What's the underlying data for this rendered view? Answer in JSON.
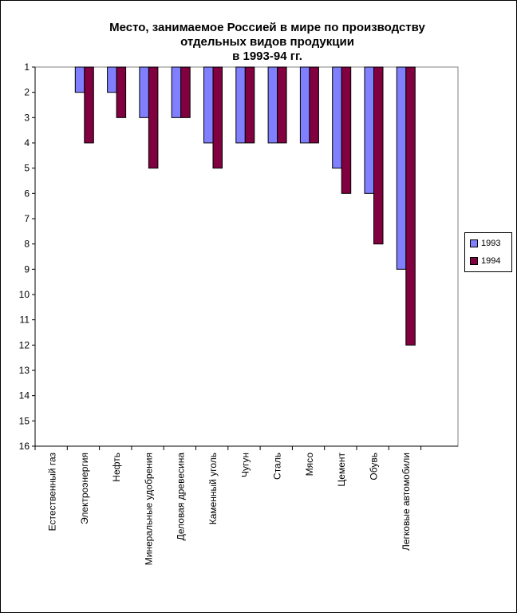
{
  "chart_data": {
    "type": "bar",
    "title": [
      "Место, занимаемое Россией в мире по производству",
      "отдельных видов продукции",
      "в 1993-94 гг."
    ],
    "categories": [
      "Естественный газ",
      "Электроэнергия",
      "Нефть",
      "Минеральные удобрения",
      "Деловая древесина",
      "Каменный уголь",
      "Чугун",
      "Сталь",
      "Мясо",
      "Цемент",
      "Обувь",
      "Легковые автомобили"
    ],
    "series": [
      {
        "name": "1993",
        "color": "#8080ff",
        "values": [
          1,
          2,
          2,
          3,
          3,
          4,
          4,
          4,
          4,
          5,
          6,
          9
        ]
      },
      {
        "name": "1994",
        "color": "#800040",
        "values": [
          1,
          4,
          3,
          5,
          3,
          5,
          4,
          4,
          4,
          6,
          8,
          12
        ]
      }
    ],
    "y_ticks": [
      "1",
      "2",
      "3",
      "4",
      "5",
      "6",
      "7",
      "8",
      "9",
      "10",
      "11",
      "12",
      "13",
      "14",
      "15",
      "16"
    ],
    "ylim": [
      1,
      16
    ],
    "y_inverted": true,
    "grid": false,
    "legend_position": "right"
  }
}
